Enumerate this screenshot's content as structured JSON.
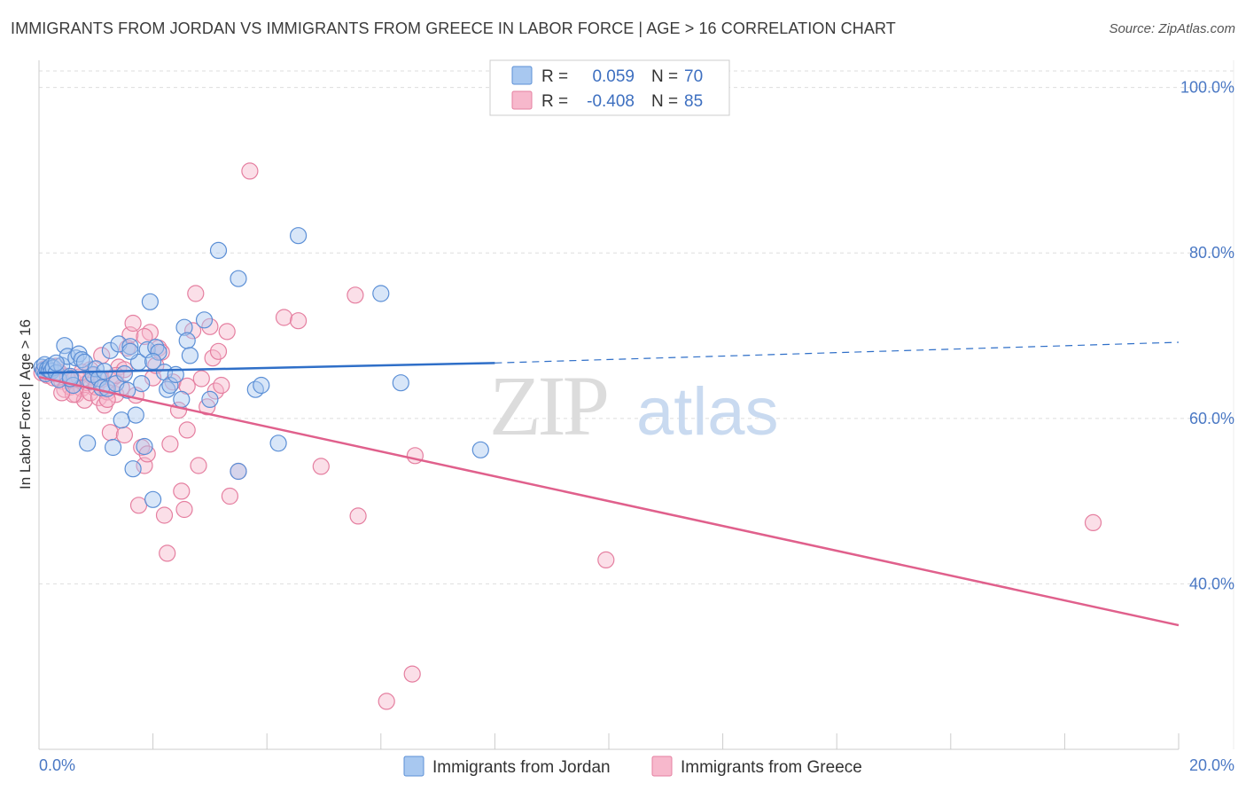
{
  "title": "IMMIGRANTS FROM JORDAN VS IMMIGRANTS FROM GREECE IN LABOR FORCE | AGE > 16 CORRELATION CHART",
  "source": "Source: ZipAtlas.com",
  "watermark": {
    "zip": "ZIP",
    "atlas": "atlas"
  },
  "colors": {
    "jordan_fill": "#a8c8f0",
    "jordan_stroke": "#5b8fd6",
    "jordan_line": "#2f6fc8",
    "greece_fill": "#f7b8cc",
    "greece_stroke": "#e57fa0",
    "greece_line": "#e0608c",
    "grid": "#dddddd",
    "tick_text": "#4a78c4"
  },
  "legend": {
    "r_label": "R =",
    "n_label": "N =",
    "jordan": {
      "r": "0.059",
      "n": "70"
    },
    "greece": {
      "r": "-0.408",
      "n": "85"
    }
  },
  "chart_data": {
    "type": "scatter",
    "title": "IMMIGRANTS FROM JORDAN VS IMMIGRANTS FROM GREECE IN LABOR FORCE | AGE > 16 CORRELATION CHART",
    "xlabel": "",
    "ylabel": "In Labor Force | Age > 16",
    "xlim": [
      0,
      20
    ],
    "ylim": [
      20,
      102
    ],
    "x_tick_labels": [
      "0.0%",
      "20.0%"
    ],
    "y_ticks": [
      40,
      60,
      80,
      100
    ],
    "y_tick_labels": [
      "40.0%",
      "60.0%",
      "80.0%",
      "100.0%"
    ],
    "legend_position": "top-center",
    "series": [
      {
        "name": "Immigrants from Jordan",
        "r": 0.059,
        "n": 70,
        "trend": {
          "x0": 0,
          "y0": 65.5,
          "x1": 8.0,
          "y1": 66.7,
          "dash_to_x": 20,
          "dash_to_y": 69.2
        },
        "points": [
          [
            0.05,
            66.2
          ],
          [
            0.08,
            65.8
          ],
          [
            0.1,
            66.5
          ],
          [
            0.12,
            65.4
          ],
          [
            0.15,
            66.0
          ],
          [
            0.18,
            65.9
          ],
          [
            0.2,
            66.3
          ],
          [
            0.22,
            65.7
          ],
          [
            0.25,
            66.1
          ],
          [
            0.3,
            65.5
          ],
          [
            0.35,
            64.7
          ],
          [
            0.4,
            66.4
          ],
          [
            0.45,
            68.8
          ],
          [
            0.5,
            67.5
          ],
          [
            0.55,
            65.1
          ],
          [
            0.6,
            64.0
          ],
          [
            0.65,
            67.3
          ],
          [
            0.7,
            67.8
          ],
          [
            0.75,
            67.1
          ],
          [
            0.8,
            66.8
          ],
          [
            0.85,
            57.0
          ],
          [
            0.9,
            64.5
          ],
          [
            0.95,
            65.3
          ],
          [
            1.0,
            66.0
          ],
          [
            1.05,
            64.8
          ],
          [
            1.1,
            63.7
          ],
          [
            1.15,
            65.7
          ],
          [
            1.2,
            63.6
          ],
          [
            1.25,
            68.2
          ],
          [
            1.3,
            56.5
          ],
          [
            1.35,
            64.2
          ],
          [
            1.4,
            69.0
          ],
          [
            1.45,
            59.8
          ],
          [
            1.5,
            65.4
          ],
          [
            1.55,
            63.4
          ],
          [
            1.6,
            68.7
          ],
          [
            1.65,
            53.9
          ],
          [
            1.7,
            60.4
          ],
          [
            1.75,
            66.8
          ],
          [
            1.8,
            64.2
          ],
          [
            1.85,
            56.6
          ],
          [
            1.9,
            68.3
          ],
          [
            1.95,
            74.1
          ],
          [
            2.0,
            50.2
          ],
          [
            2.05,
            68.6
          ],
          [
            2.1,
            68.0
          ],
          [
            2.2,
            65.6
          ],
          [
            2.25,
            63.5
          ],
          [
            2.3,
            64.0
          ],
          [
            2.4,
            65.3
          ],
          [
            2.5,
            62.3
          ],
          [
            2.55,
            71.0
          ],
          [
            2.6,
            69.4
          ],
          [
            2.65,
            67.6
          ],
          [
            2.9,
            71.9
          ],
          [
            3.0,
            62.3
          ],
          [
            3.15,
            80.3
          ],
          [
            3.5,
            76.9
          ],
          [
            3.5,
            53.6
          ],
          [
            3.8,
            63.5
          ],
          [
            3.9,
            64.0
          ],
          [
            4.2,
            57.0
          ],
          [
            4.55,
            82.1
          ],
          [
            6.0,
            75.1
          ],
          [
            6.35,
            64.3
          ],
          [
            7.75,
            56.2
          ],
          [
            2.0,
            66.9
          ],
          [
            1.6,
            68.1
          ],
          [
            0.55,
            64.8
          ],
          [
            0.3,
            66.7
          ]
        ]
      },
      {
        "name": "Immigrants from Greece",
        "r": -0.408,
        "n": 85,
        "trend": {
          "x0": 0,
          "y0": 65.0,
          "x1": 20,
          "y1": 35.0
        },
        "points": [
          [
            0.05,
            65.5
          ],
          [
            0.1,
            66.0
          ],
          [
            0.15,
            65.2
          ],
          [
            0.2,
            65.8
          ],
          [
            0.25,
            64.9
          ],
          [
            0.3,
            66.3
          ],
          [
            0.35,
            65.6
          ],
          [
            0.4,
            64.5
          ],
          [
            0.45,
            63.5
          ],
          [
            0.5,
            65.1
          ],
          [
            0.55,
            63.8
          ],
          [
            0.6,
            64.6
          ],
          [
            0.65,
            62.9
          ],
          [
            0.7,
            65.0
          ],
          [
            0.75,
            63.6
          ],
          [
            0.8,
            62.2
          ],
          [
            0.85,
            64.3
          ],
          [
            0.9,
            63.1
          ],
          [
            0.95,
            65.2
          ],
          [
            1.0,
            63.8
          ],
          [
            1.05,
            62.5
          ],
          [
            1.1,
            64.7
          ],
          [
            1.15,
            61.6
          ],
          [
            1.2,
            63.2
          ],
          [
            1.25,
            58.3
          ],
          [
            1.3,
            64.9
          ],
          [
            1.35,
            62.9
          ],
          [
            1.4,
            66.2
          ],
          [
            1.45,
            63.7
          ],
          [
            1.5,
            58.0
          ],
          [
            1.55,
            68.5
          ],
          [
            1.6,
            70.1
          ],
          [
            1.65,
            71.5
          ],
          [
            1.7,
            62.8
          ],
          [
            1.75,
            49.5
          ],
          [
            1.8,
            56.5
          ],
          [
            1.85,
            54.3
          ],
          [
            1.9,
            55.7
          ],
          [
            1.95,
            70.4
          ],
          [
            2.0,
            64.9
          ],
          [
            2.05,
            66.4
          ],
          [
            2.1,
            68.5
          ],
          [
            2.15,
            68.0
          ],
          [
            2.2,
            48.3
          ],
          [
            2.25,
            43.7
          ],
          [
            2.3,
            56.9
          ],
          [
            2.35,
            64.4
          ],
          [
            2.45,
            61.0
          ],
          [
            2.5,
            51.2
          ],
          [
            2.55,
            49.0
          ],
          [
            2.6,
            63.9
          ],
          [
            2.7,
            70.6
          ],
          [
            2.75,
            75.1
          ],
          [
            2.8,
            54.3
          ],
          [
            2.85,
            64.8
          ],
          [
            2.95,
            61.4
          ],
          [
            3.0,
            71.1
          ],
          [
            3.05,
            67.3
          ],
          [
            3.1,
            63.3
          ],
          [
            3.15,
            68.1
          ],
          [
            3.2,
            64.0
          ],
          [
            3.3,
            70.5
          ],
          [
            3.35,
            50.6
          ],
          [
            3.5,
            53.6
          ],
          [
            3.7,
            89.9
          ],
          [
            4.3,
            72.2
          ],
          [
            4.55,
            71.8
          ],
          [
            4.95,
            54.2
          ],
          [
            5.55,
            74.9
          ],
          [
            5.6,
            48.2
          ],
          [
            6.6,
            55.5
          ],
          [
            6.55,
            29.1
          ],
          [
            6.1,
            25.8
          ],
          [
            9.95,
            42.9
          ],
          [
            18.5,
            47.4
          ],
          [
            0.6,
            62.9
          ],
          [
            0.9,
            65.9
          ],
          [
            1.2,
            62.3
          ],
          [
            1.5,
            65.9
          ],
          [
            1.85,
            69.9
          ],
          [
            1.35,
            65.2
          ],
          [
            0.75,
            65.6
          ],
          [
            0.4,
            63.1
          ],
          [
            2.6,
            58.6
          ],
          [
            1.1,
            67.6
          ]
        ]
      }
    ]
  }
}
